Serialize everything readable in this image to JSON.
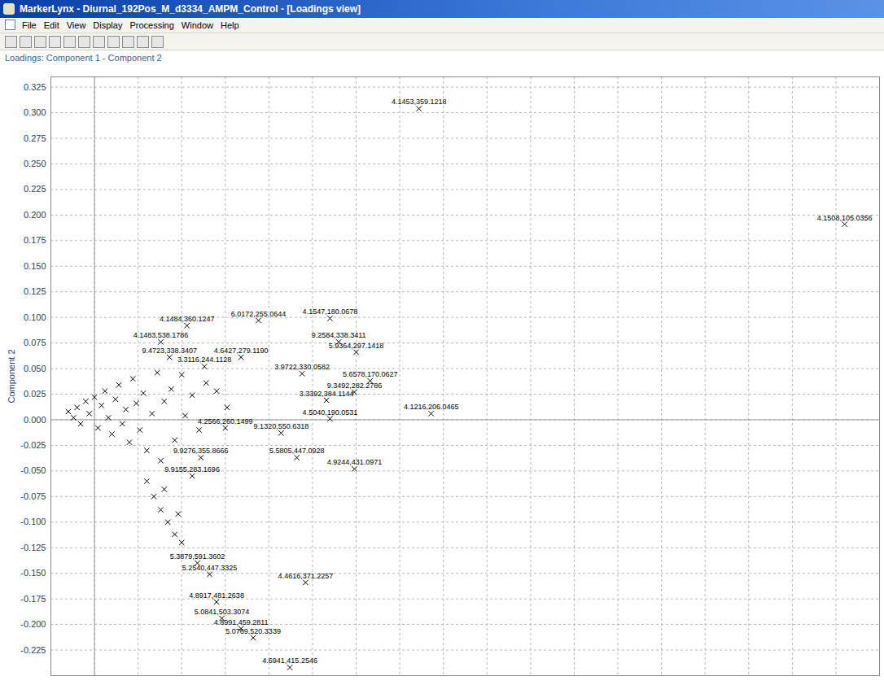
{
  "window_title": "MarkerLynx - Diurnal_192Pos_M_d3334_AMPM_Control - [Loadings view]",
  "menu": [
    "File",
    "Edit",
    "View",
    "Display",
    "Processing",
    "Window",
    "Help"
  ],
  "panel_title": "Loadings: Component 1 - Component 2",
  "chart_data": {
    "type": "scatter",
    "y_label": "Component 2",
    "marker": "times",
    "color": "#000000",
    "grid": true,
    "tick_labels": "y",
    "xlim": [
      -0.025,
      0.45
    ],
    "xticks": [
      -0.025,
      0,
      0.025,
      0.05,
      0.075,
      0.1,
      0.125,
      0.15,
      0.175,
      0.2,
      0.225,
      0.25,
      0.275,
      0.3,
      0.325,
      0.35,
      0.375,
      0.4,
      0.425,
      0.45
    ],
    "ylim": [
      -0.25,
      0.335
    ],
    "yticks": [
      0.325,
      {
        "value": 0.3,
        "label": "0.300"
      },
      0.275,
      {
        "value": 0.25,
        "label": "0.250"
      },
      0.225,
      {
        "value": 0.2,
        "label": "0.200"
      },
      0.175,
      {
        "value": 0.15,
        "label": "0.150"
      },
      0.125,
      {
        "value": 0.1,
        "label": "0.100"
      },
      0.075,
      {
        "value": 0.05,
        "label": "0.050"
      },
      0.025,
      {
        "value": 0,
        "label": "0.000"
      },
      -0.025,
      {
        "value": -0.05,
        "label": "-0.050"
      },
      -0.075,
      {
        "value": -0.1,
        "label": "-0.100"
      },
      -0.125,
      {
        "value": -0.15,
        "label": "-0.150"
      },
      -0.175,
      {
        "value": -0.2,
        "label": "-0.200"
      },
      -0.225
    ],
    "x": [
      0.186,
      0.43,
      0.053,
      0.094,
      0.135,
      0.038,
      0.043,
      0.14,
      0.15,
      0.063,
      0.084,
      0.119,
      0.158,
      0.149,
      0.133,
      0.193,
      0.135,
      0.075,
      0.107,
      0.116,
      0.149,
      0.061,
      0.056,
      0.121,
      0.07,
      0.073,
      0.084,
      0.091,
      0.112,
      0.059,
      0.066,
      -0.015,
      -0.012,
      -0.01,
      -0.008,
      -0.005,
      -0.003,
      0.0,
      0.002,
      0.004,
      0.006,
      0.008,
      0.01,
      0.012,
      0.014,
      0.016,
      0.018,
      0.02,
      0.022,
      0.024,
      0.026,
      0.028,
      0.03,
      0.033,
      0.036,
      0.038,
      0.04,
      0.044,
      0.046,
      0.05,
      0.052,
      0.056,
      0.06,
      0.064,
      0.07,
      0.076,
      0.03,
      0.034,
      0.038,
      0.042,
      0.046,
      0.05,
      0.04,
      0.048
    ],
    "values": [
      0.304,
      0.191,
      0.092,
      0.097,
      0.099,
      0.076,
      0.061,
      0.076,
      0.066,
      0.052,
      0.061,
      0.045,
      0.038,
      0.027,
      0.019,
      0.006,
      0.001,
      -0.008,
      -0.013,
      -0.037,
      -0.048,
      -0.037,
      -0.055,
      -0.159,
      -0.178,
      -0.194,
      -0.204,
      -0.213,
      -0.242,
      -0.14,
      -0.151,
      0.008,
      0.002,
      0.012,
      -0.004,
      0.018,
      0.006,
      0.022,
      -0.008,
      0.014,
      0.028,
      0.002,
      -0.014,
      0.02,
      0.034,
      -0.004,
      0.01,
      -0.022,
      0.04,
      0.016,
      -0.01,
      0.026,
      -0.03,
      0.006,
      0.046,
      -0.04,
      0.018,
      0.03,
      -0.02,
      0.044,
      0.004,
      0.024,
      -0.01,
      0.036,
      0.028,
      0.012,
      -0.06,
      -0.075,
      -0.088,
      -0.1,
      -0.112,
      -0.12,
      -0.068,
      -0.092
    ],
    "point_labels": [
      "4.1453,359.1218",
      "4.1508,105.0356",
      "4.1484,360.1247",
      "6.0172,255.0644",
      "4.1547,180.0678",
      "4.1483,538.1786",
      "9.4723,338.3407",
      "9.2584,338.3411",
      "5.9364,297.1418",
      "3.3116,244.1128",
      "4.6427,279.1190",
      "3.9722,330.0582",
      "5.6578,170.0627",
      "9.3492,282.2786",
      "3.3392,384.1144",
      "4.1216,206.0465",
      "4.5040,190.0531",
      "4.2566,260.1499",
      "9.1320,550.6318",
      "5.5805,447.0928",
      "4.9244,431.0971",
      "9.9276,355.8666",
      "9.9155,283.1696",
      "4.4616,371.2257",
      "4.8917,481.2638",
      "5.0841,503.3074",
      "4.8991,459.2811",
      "5.0769,520.3339",
      "4.6941,415.2546",
      "5.3879,591.3602",
      "5.2540,447.3325",
      null,
      null,
      null,
      null,
      null,
      null,
      null,
      null,
      null,
      null,
      null,
      null,
      null,
      null,
      null,
      null,
      null,
      null,
      null,
      null,
      null,
      null,
      null,
      null,
      null,
      null,
      null,
      null,
      null,
      null,
      null,
      null,
      null,
      null,
      null,
      null,
      null,
      null,
      null,
      null,
      null,
      null,
      null
    ]
  }
}
